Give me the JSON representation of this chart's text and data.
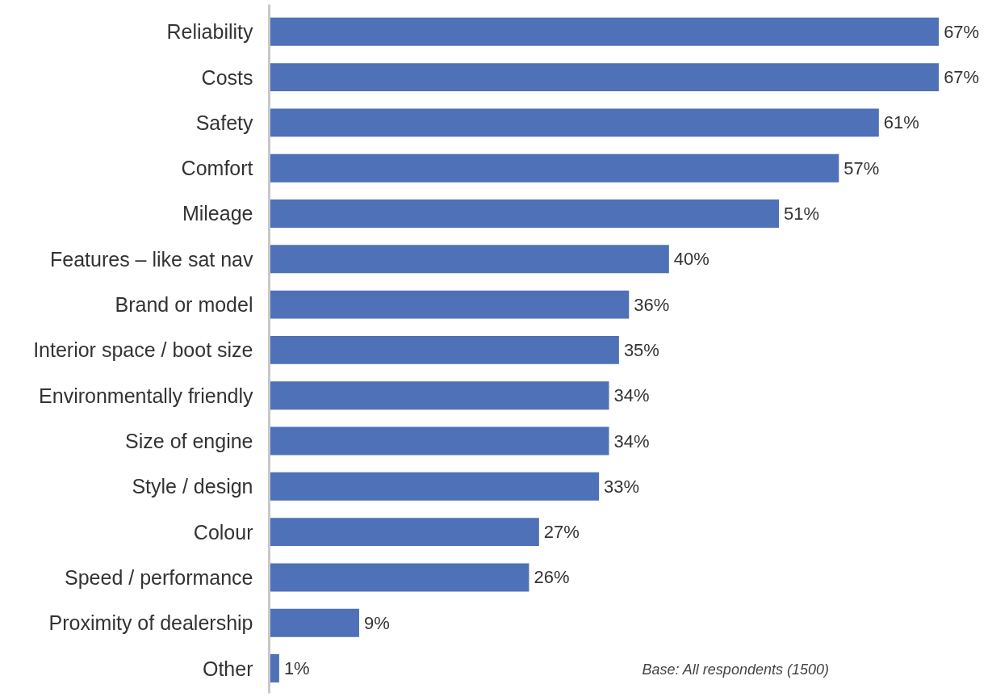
{
  "chart_data": {
    "type": "bar",
    "orientation": "horizontal",
    "categories": [
      "Reliability",
      "Costs",
      "Safety",
      "Comfort",
      "Mileage",
      "Features – like sat nav",
      "Brand or model",
      "Interior space / boot size",
      "Environmentally friendly",
      "Size of engine",
      "Style / design",
      "Colour",
      "Speed / performance",
      "Proximity of dealership",
      "Other"
    ],
    "values": [
      67,
      67,
      61,
      57,
      51,
      40,
      36,
      35,
      34,
      34,
      33,
      27,
      26,
      9,
      1
    ],
    "value_labels": [
      "67%",
      "67%",
      "61%",
      "57%",
      "51%",
      "40%",
      "36%",
      "35%",
      "34%",
      "34%",
      "33%",
      "27%",
      "26%",
      "9%",
      "1%"
    ],
    "color": "#4e71b7",
    "grid": false,
    "annotations": [
      "Base: All respondents (1500)"
    ]
  }
}
